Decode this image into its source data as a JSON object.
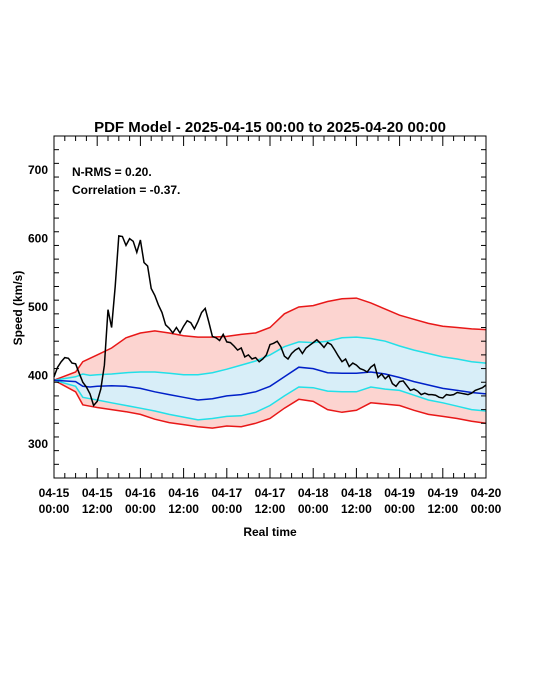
{
  "chart_data": {
    "type": "line",
    "title": "PDF Model - 2025-04-15 00:00 to 2025-04-20 00:00",
    "xlabel": "Real time",
    "ylabel": "Speed (km/s)",
    "xlim": [
      "2025-04-15 00:00",
      "2025-04-20 00:00"
    ],
    "ylim": [
      250,
      750
    ],
    "y_ticks": [
      300,
      400,
      500,
      600,
      700
    ],
    "x_ticks": [
      {
        "date": "04-15",
        "time": "00:00",
        "hour": 0
      },
      {
        "date": "04-15",
        "time": "12:00",
        "hour": 12
      },
      {
        "date": "04-16",
        "time": "00:00",
        "hour": 24
      },
      {
        "date": "04-16",
        "time": "12:00",
        "hour": 36
      },
      {
        "date": "04-17",
        "time": "00:00",
        "hour": 48
      },
      {
        "date": "04-17",
        "time": "12:00",
        "hour": 60
      },
      {
        "date": "04-18",
        "time": "00:00",
        "hour": 72
      },
      {
        "date": "04-18",
        "time": "12:00",
        "hour": 84
      },
      {
        "date": "04-19",
        "time": "00:00",
        "hour": 96
      },
      {
        "date": "04-19",
        "time": "12:00",
        "hour": 108
      },
      {
        "date": "04-20",
        "time": "00:00",
        "hour": 120
      }
    ],
    "annotations": [
      "N-RMS = 0.20.",
      "Correlation = -0.37."
    ],
    "colors": {
      "observed": "#000000",
      "median": "#0020c8",
      "inner_band": "#22e0e8",
      "outer_band": "#e81818",
      "inner_fill": "#d8eef8",
      "outer_fill": "#fcd4d0"
    },
    "x_hours": [
      0,
      6,
      8,
      10,
      12,
      16,
      20,
      24,
      28,
      32,
      36,
      40,
      44,
      48,
      52,
      56,
      60,
      64,
      68,
      72,
      76,
      80,
      84,
      88,
      92,
      96,
      100,
      104,
      108,
      112,
      116,
      120
    ],
    "outer_upper": [
      393,
      405,
      420,
      425,
      430,
      440,
      455,
      462,
      465,
      462,
      458,
      456,
      456,
      457,
      460,
      462,
      470,
      490,
      500,
      502,
      508,
      512,
      513,
      506,
      497,
      488,
      482,
      476,
      472,
      470,
      468,
      467
    ],
    "inner_upper": [
      393,
      398,
      402,
      400,
      401,
      402,
      404,
      405,
      405,
      403,
      401,
      401,
      404,
      409,
      415,
      421,
      430,
      442,
      449,
      448,
      450,
      455,
      456,
      454,
      450,
      443,
      437,
      432,
      427,
      424,
      420,
      418
    ],
    "median": [
      393,
      391,
      384,
      383,
      384,
      385,
      384,
      381,
      376,
      372,
      368,
      364,
      366,
      370,
      372,
      376,
      384,
      398,
      412,
      410,
      404,
      403,
      403,
      405,
      402,
      397,
      391,
      386,
      381,
      378,
      375,
      373
    ],
    "inner_lower": [
      393,
      384,
      368,
      366,
      364,
      360,
      356,
      352,
      348,
      343,
      339,
      335,
      337,
      340,
      341,
      346,
      356,
      370,
      383,
      382,
      377,
      376,
      376,
      383,
      380,
      378,
      371,
      364,
      360,
      355,
      350,
      348
    ],
    "outer_lower": [
      393,
      376,
      357,
      355,
      353,
      350,
      347,
      343,
      336,
      331,
      328,
      325,
      323,
      326,
      325,
      330,
      337,
      352,
      365,
      362,
      350,
      346,
      349,
      360,
      358,
      356,
      349,
      343,
      340,
      337,
      333,
      330
    ],
    "observed": {
      "x": [
        0,
        1,
        2,
        3,
        4,
        5,
        6,
        7,
        8,
        9,
        10,
        11,
        12,
        13,
        14,
        15,
        16,
        17,
        18,
        19,
        20,
        21,
        22,
        23,
        24,
        25,
        26,
        27,
        28,
        29,
        30,
        31,
        32,
        33,
        34,
        35,
        36,
        37,
        38,
        39,
        40,
        41,
        42,
        43,
        44,
        45,
        46,
        47,
        48,
        49,
        50,
        51,
        52,
        53,
        54,
        55,
        56,
        57,
        58,
        59,
        60,
        61,
        62,
        63,
        64,
        65,
        66,
        67,
        68,
        69,
        70,
        71,
        72,
        73,
        74,
        75,
        76,
        77,
        78,
        79,
        80,
        81,
        82,
        83,
        84,
        85,
        86,
        87,
        88,
        89,
        90,
        91,
        92,
        93,
        94,
        95,
        96,
        97,
        98,
        99,
        100,
        101,
        102,
        103,
        104,
        105,
        106,
        107,
        108,
        109,
        110,
        111,
        112,
        113,
        114,
        115,
        116,
        117,
        118,
        119,
        120
      ],
      "y": [
        398,
        412,
        420,
        426,
        425,
        418,
        417,
        403,
        390,
        383,
        373,
        356,
        362,
        380,
        415,
        496,
        470,
        530,
        604,
        603,
        590,
        600,
        596,
        580,
        598,
        565,
        560,
        527,
        517,
        503,
        492,
        474,
        469,
        462,
        470,
        462,
        472,
        480,
        477,
        468,
        479,
        492,
        498,
        478,
        457,
        455,
        451,
        460,
        449,
        448,
        443,
        437,
        440,
        427,
        430,
        424,
        426,
        420,
        424,
        430,
        445,
        447,
        450,
        442,
        428,
        424,
        432,
        437,
        440,
        432,
        440,
        444,
        448,
        452,
        447,
        441,
        448,
        445,
        437,
        428,
        420,
        424,
        413,
        418,
        415,
        410,
        408,
        405,
        412,
        416,
        397,
        402,
        395,
        400,
        388,
        384,
        391,
        392,
        385,
        378,
        380,
        377,
        372,
        374,
        372,
        372,
        371,
        368,
        367,
        372,
        371,
        372,
        375,
        374,
        373,
        372,
        374,
        378,
        380,
        382,
        386
      ]
    }
  }
}
